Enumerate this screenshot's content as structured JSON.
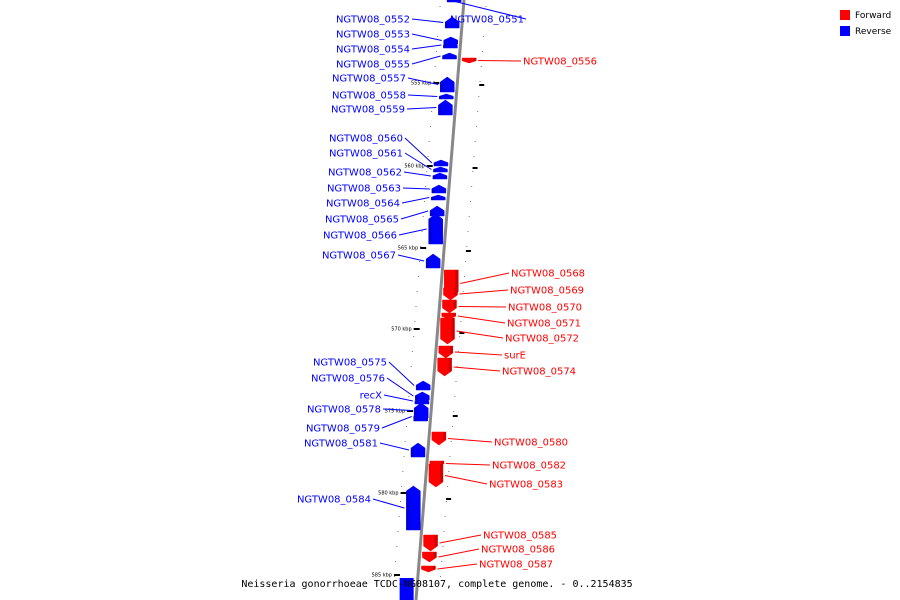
{
  "colors": {
    "forward": "#ff0000",
    "reverse": "#0000ff",
    "backbone": "#888888"
  },
  "legend": {
    "forward_label": "Forward",
    "reverse_label": "Reverse"
  },
  "caption": "Neisseria gonorrhoeae TCDC-NG08107, complete genome. - 0..2154835",
  "ticks": [
    "555 kbp",
    "560 kbp",
    "565 kbp",
    "570 kbp",
    "575 kbp",
    "580 kbp",
    "585 kbp"
  ],
  "genes": [
    {
      "name": "NGTW08_0551",
      "strand": "reverse"
    },
    {
      "name": "NGTW08_0552",
      "strand": "reverse"
    },
    {
      "name": "NGTW08_0553",
      "strand": "reverse"
    },
    {
      "name": "NGTW08_0554",
      "strand": "reverse"
    },
    {
      "name": "NGTW08_0555",
      "strand": "reverse"
    },
    {
      "name": "NGTW08_0556",
      "strand": "forward"
    },
    {
      "name": "NGTW08_0557",
      "strand": "reverse"
    },
    {
      "name": "NGTW08_0558",
      "strand": "reverse"
    },
    {
      "name": "NGTW08_0559",
      "strand": "reverse"
    },
    {
      "name": "NGTW08_0560",
      "strand": "reverse"
    },
    {
      "name": "NGTW08_0561",
      "strand": "reverse"
    },
    {
      "name": "NGTW08_0562",
      "strand": "reverse"
    },
    {
      "name": "NGTW08_0563",
      "strand": "reverse"
    },
    {
      "name": "NGTW08_0564",
      "strand": "reverse"
    },
    {
      "name": "NGTW08_0565",
      "strand": "reverse"
    },
    {
      "name": "NGTW08_0566",
      "strand": "reverse"
    },
    {
      "name": "NGTW08_0567",
      "strand": "reverse"
    },
    {
      "name": "NGTW08_0568",
      "strand": "forward"
    },
    {
      "name": "NGTW08_0569",
      "strand": "forward"
    },
    {
      "name": "NGTW08_0570",
      "strand": "forward"
    },
    {
      "name": "NGTW08_0571",
      "strand": "forward"
    },
    {
      "name": "NGTW08_0572",
      "strand": "forward"
    },
    {
      "name": "surE",
      "strand": "forward"
    },
    {
      "name": "NGTW08_0574",
      "strand": "forward"
    },
    {
      "name": "NGTW08_0575",
      "strand": "reverse"
    },
    {
      "name": "NGTW08_0576",
      "strand": "reverse"
    },
    {
      "name": "recX",
      "strand": "reverse"
    },
    {
      "name": "NGTW08_0578",
      "strand": "reverse"
    },
    {
      "name": "NGTW08_0579",
      "strand": "reverse"
    },
    {
      "name": "NGTW08_0580",
      "strand": "forward"
    },
    {
      "name": "NGTW08_0581",
      "strand": "reverse"
    },
    {
      "name": "NGTW08_0582",
      "strand": "forward"
    },
    {
      "name": "NGTW08_0583",
      "strand": "forward"
    },
    {
      "name": "NGTW08_0584",
      "strand": "reverse"
    },
    {
      "name": "NGTW08_0585",
      "strand": "forward"
    },
    {
      "name": "NGTW08_0586",
      "strand": "forward"
    },
    {
      "name": "NGTW08_0587",
      "strand": "forward"
    }
  ]
}
